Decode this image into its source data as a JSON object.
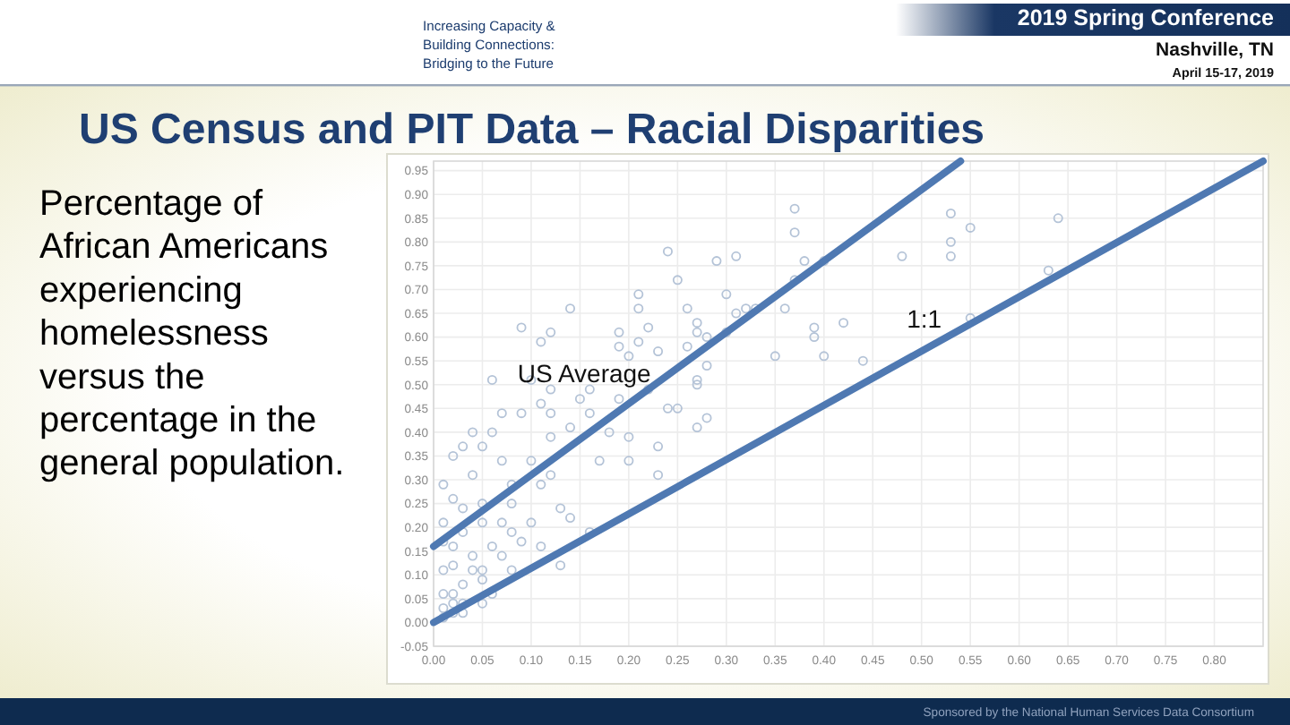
{
  "chart_data": {
    "type": "scatter",
    "title": "US Census and PIT Data – Racial Disparities",
    "subtitle": "Percentage of African Americans experiencing homelessness versus the percentage in the general population.",
    "annotations": [
      "Increasing Capacity & Building Connections: Bridging to the Future",
      "2019 Spring Conference",
      "Nashville, TN",
      "April 15-17, 2019",
      "Sponsored by the National Human Services Data Consortium"
    ],
    "series": [
      {
        "color": "#b4c3d7",
        "marker": "circle",
        "x": [
          0.37,
          0.37,
          0.53,
          0.55,
          0.53,
          0.53,
          0.48,
          0.64,
          0.63,
          0.29,
          0.31,
          0.38,
          0.4,
          0.37,
          0.36,
          0.3,
          0.31,
          0.32,
          0.33,
          0.26,
          0.27,
          0.27,
          0.28,
          0.3,
          0.26,
          0.28,
          0.27,
          0.27,
          0.25,
          0.28,
          0.27,
          0.35,
          0.39,
          0.39,
          0.42,
          0.4,
          0.44,
          0.55,
          0.25,
          0.24,
          0.21,
          0.14,
          0.21,
          0.09,
          0.12,
          0.19,
          0.22,
          0.11,
          0.06,
          0.1,
          0.12,
          0.16,
          0.19,
          0.21,
          0.23,
          0.2,
          0.01,
          0.02,
          0.03,
          0.05,
          0.06,
          0.07,
          0.08,
          0.04,
          0.03,
          0.05,
          0.08,
          0.1,
          0.09,
          0.06,
          0.11,
          0.12,
          0.14,
          0.13,
          0.1,
          0.12,
          0.14,
          0.16,
          0.12,
          0.09,
          0.11,
          0.07,
          0.04,
          0.15,
          0.19,
          0.22,
          0.24,
          0.2,
          0.23,
          0.18,
          0.17,
          0.2,
          0.23,
          0.13,
          0.08,
          0.11,
          0.08,
          0.16,
          0.01,
          0.02,
          0.02,
          0.02,
          0.03,
          0.01,
          0.03,
          0.04,
          0.05,
          0.02,
          0.01,
          0.04,
          0.05,
          0.06,
          0.02,
          0.03,
          0.01,
          0.01,
          0.02,
          0.05,
          0.07,
          0.07,
          0.01,
          0.03,
          0.05
        ],
        "values": [
          0.87,
          0.82,
          0.86,
          0.83,
          0.8,
          0.77,
          0.77,
          0.85,
          0.74,
          0.76,
          0.77,
          0.76,
          0.76,
          0.72,
          0.66,
          0.69,
          0.65,
          0.66,
          0.66,
          0.66,
          0.63,
          0.61,
          0.6,
          0.61,
          0.58,
          0.54,
          0.51,
          0.5,
          0.45,
          0.43,
          0.41,
          0.56,
          0.62,
          0.6,
          0.63,
          0.56,
          0.55,
          0.64,
          0.72,
          0.78,
          0.69,
          0.66,
          0.66,
          0.62,
          0.61,
          0.61,
          0.62,
          0.59,
          0.51,
          0.51,
          0.49,
          0.49,
          0.58,
          0.59,
          0.57,
          0.56,
          0.29,
          0.35,
          0.37,
          0.37,
          0.4,
          0.34,
          0.29,
          0.31,
          0.24,
          0.25,
          0.25,
          0.21,
          0.17,
          0.16,
          0.29,
          0.31,
          0.22,
          0.24,
          0.34,
          0.39,
          0.41,
          0.44,
          0.44,
          0.44,
          0.46,
          0.44,
          0.4,
          0.47,
          0.47,
          0.49,
          0.45,
          0.39,
          0.37,
          0.4,
          0.34,
          0.34,
          0.31,
          0.12,
          0.11,
          0.16,
          0.19,
          0.19,
          0.01,
          0.02,
          0.04,
          0.06,
          0.08,
          0.06,
          0.04,
          0.11,
          0.09,
          0.12,
          0.11,
          0.14,
          0.11,
          0.06,
          0.16,
          0.19,
          0.17,
          0.21,
          0.26,
          0.21,
          0.14,
          0.21,
          0.03,
          0.02,
          0.04
        ]
      },
      {
        "type": "line",
        "name": "US Average",
        "color": "#4f79b2",
        "x": [
          0,
          0.54
        ],
        "values": [
          0.16,
          0.97
        ]
      },
      {
        "type": "line",
        "name": "1:1",
        "color": "#4f79b2",
        "x": [
          0,
          0.85
        ],
        "values": [
          0,
          0.97
        ]
      }
    ],
    "xlim": [
      0,
      0.85
    ],
    "ylim": [
      -0.05,
      0.97
    ],
    "xticks": [
      {
        "value": 0,
        "label": "0.00"
      },
      {
        "value": 0.05,
        "label": "0.05"
      },
      {
        "value": 0.1,
        "label": "0.10"
      },
      {
        "value": 0.15,
        "label": "0.15"
      },
      {
        "value": 0.2,
        "label": "0.20"
      },
      {
        "value": 0.25,
        "label": "0.25"
      },
      {
        "value": 0.3,
        "label": "0.30"
      },
      {
        "value": 0.35,
        "label": "0.35"
      },
      {
        "value": 0.4,
        "label": "0.40"
      },
      {
        "value": 0.45,
        "label": "0.45"
      },
      {
        "value": 0.5,
        "label": "0.50"
      },
      {
        "value": 0.55,
        "label": "0.55"
      },
      {
        "value": 0.6,
        "label": "0.60"
      },
      {
        "value": 0.65,
        "label": "0.65"
      },
      {
        "value": 0.7,
        "label": "0.70"
      },
      {
        "value": 0.75,
        "label": "0.75"
      },
      {
        "value": 0.8,
        "label": "0.80"
      }
    ],
    "yticks": [
      {
        "value": -0.05,
        "label": "-0.05"
      },
      {
        "value": 0,
        "label": "0.00"
      },
      {
        "value": 0.05,
        "label": "0.05"
      },
      {
        "value": 0.1,
        "label": "0.10"
      },
      {
        "value": 0.15,
        "label": "0.15"
      },
      {
        "value": 0.2,
        "label": "0.20"
      },
      {
        "value": 0.25,
        "label": "0.25"
      },
      {
        "value": 0.3,
        "label": "0.30"
      },
      {
        "value": 0.35,
        "label": "0.35"
      },
      {
        "value": 0.4,
        "label": "0.40"
      },
      {
        "value": 0.45,
        "label": "0.45"
      },
      {
        "value": 0.5,
        "label": "0.50"
      },
      {
        "value": 0.55,
        "label": "0.55"
      },
      {
        "value": 0.6,
        "label": "0.60"
      },
      {
        "value": 0.65,
        "label": "0.65"
      },
      {
        "value": 0.7,
        "label": "0.70"
      },
      {
        "value": 0.75,
        "label": "0.75"
      },
      {
        "value": 0.8,
        "label": "0.80"
      },
      {
        "value": 0.85,
        "label": "0.85"
      },
      {
        "value": 0.9,
        "label": "0.90"
      },
      {
        "value": 0.95,
        "label": "0.95"
      }
    ],
    "grid": true
  }
}
